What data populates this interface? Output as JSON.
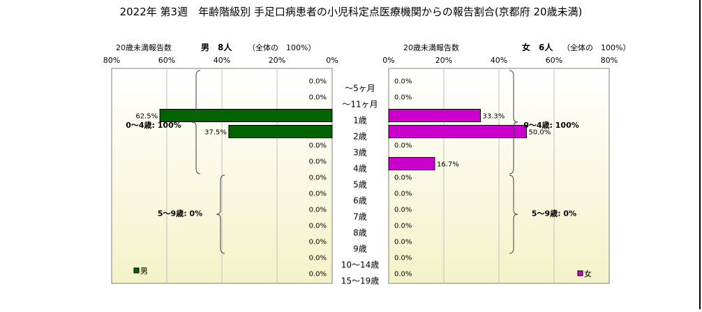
{
  "title": "2022年 第3週　年齢階級別 手足口病患者の小児科定点医療機関からの報告割合(京都府 20歳未満)",
  "chart_data": {
    "type": "bar",
    "orientation": "horizontal",
    "title": "2022年 第3週　年齢階級別 手足口病患者の小児科定点医療機関からの報告割合(京都府 20歳未満)",
    "categories": [
      "～5ヶ月",
      "～11ヶ月",
      "1歳",
      "2歳",
      "3歳",
      "4歳",
      "5歳",
      "6歳",
      "7歳",
      "8歳",
      "9歳",
      "10～14歳",
      "15～19歳"
    ],
    "xlim": [
      0,
      80
    ],
    "ticks": [
      "80%",
      "60%",
      "40%",
      "20%",
      "0%"
    ],
    "ticks_right": [
      "0%",
      "20%",
      "40%",
      "60%",
      "80%"
    ],
    "grid": true,
    "series": [
      {
        "name": "男",
        "header_label": "20歳未満報告数",
        "header_total": "男　8人",
        "header_share": "（全体の　100%）",
        "values": [
          0.0,
          0.0,
          62.5,
          37.5,
          0.0,
          0.0,
          0.0,
          0.0,
          0.0,
          0.0,
          0.0,
          0.0,
          0.0
        ],
        "value_labels": [
          "0.0%",
          "0.0%",
          "62.5%",
          "37.5%",
          "0.0%",
          "0.0%",
          "0.0%",
          "0.0%",
          "0.0%",
          "0.0%",
          "0.0%",
          "0.0%",
          "0.0%"
        ],
        "color": "#006400",
        "groups": [
          {
            "label": "0～4歳: 100%",
            "from": 0,
            "to": 5
          },
          {
            "label": "5～9歳: 0%",
            "from": 6,
            "to": 10
          }
        ]
      },
      {
        "name": "女",
        "header_label": "20歳未満報告数",
        "header_total": "女　6人",
        "header_share": "（全体の　100%）",
        "values": [
          0.0,
          0.0,
          33.3,
          50.0,
          0.0,
          16.7,
          0.0,
          0.0,
          0.0,
          0.0,
          0.0,
          0.0,
          0.0
        ],
        "value_labels": [
          "0.0%",
          "0.0%",
          "33.3%",
          "50.0%",
          "0.0%",
          "16.7%",
          "0.0%",
          "0.0%",
          "0.0%",
          "0.0%",
          "0.0%",
          "0.0%",
          "0.0%"
        ],
        "color": "#cc00cc",
        "groups": [
          {
            "label": "0～4歳: 100%",
            "from": 0,
            "to": 5
          },
          {
            "label": "5～9歳: 0%",
            "from": 6,
            "to": 10
          }
        ]
      }
    ],
    "colors": {
      "plot_bg_top": "#ffffff",
      "plot_bg_bottom": "#f4f2c8",
      "grid": "#c0c0c0"
    }
  }
}
